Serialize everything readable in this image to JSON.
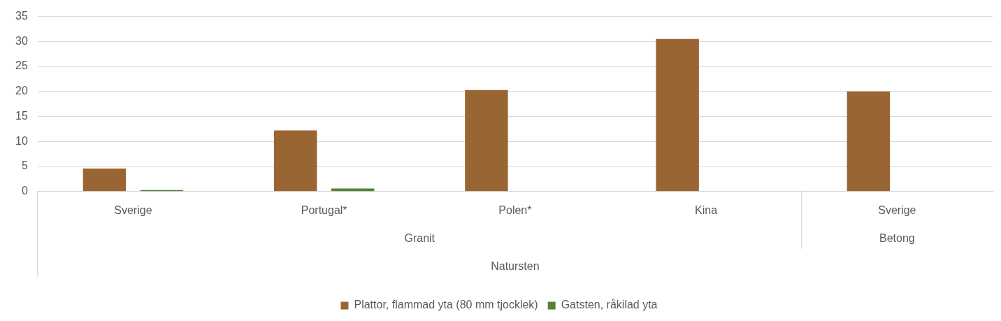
{
  "chart_data": {
    "type": "bar",
    "categories": [
      "Sverige",
      "Portugal*",
      "Polen*",
      "Kina",
      "Sverige"
    ],
    "series": [
      {
        "name": "Plattor, flammad yta (80 mm tjocklek)",
        "color": "#996633",
        "values": [
          4.6,
          12.2,
          20.3,
          30.5,
          20.0
        ]
      },
      {
        "name": "Gatsten, råkilad yta",
        "color": "#548235",
        "values": [
          0.3,
          0.6,
          null,
          null,
          null
        ]
      }
    ],
    "annotations": [
      "Granit",
      "Betong",
      "Natursten"
    ],
    "ylim": [
      0,
      35
    ],
    "yticks": [
      0,
      5,
      10,
      15,
      20,
      25,
      30,
      35
    ],
    "grid": "y",
    "legend": "bottom"
  }
}
